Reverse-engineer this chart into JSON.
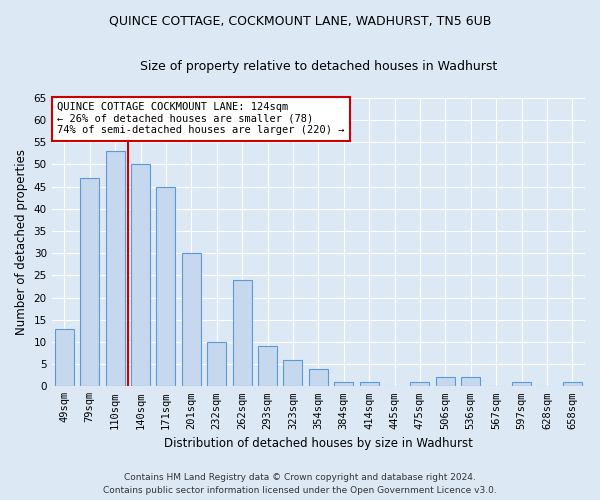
{
  "title": "QUINCE COTTAGE, COCKMOUNT LANE, WADHURST, TN5 6UB",
  "subtitle": "Size of property relative to detached houses in Wadhurst",
  "xlabel": "Distribution of detached houses by size in Wadhurst",
  "ylabel": "Number of detached properties",
  "bar_labels": [
    "49sqm",
    "79sqm",
    "110sqm",
    "140sqm",
    "171sqm",
    "201sqm",
    "232sqm",
    "262sqm",
    "293sqm",
    "323sqm",
    "354sqm",
    "384sqm",
    "414sqm",
    "445sqm",
    "475sqm",
    "506sqm",
    "536sqm",
    "567sqm",
    "597sqm",
    "628sqm",
    "658sqm"
  ],
  "bar_values": [
    13,
    47,
    53,
    50,
    45,
    30,
    10,
    24,
    9,
    6,
    4,
    1,
    1,
    0,
    1,
    2,
    2,
    0,
    1,
    0,
    1
  ],
  "bar_color": "#c5d8ee",
  "bar_edge_color": "#5b9bd5",
  "bar_edge_width": 0.8,
  "bar_width": 0.75,
  "red_line_x": 2.5,
  "red_line_color": "#cc0000",
  "ylim": [
    0,
    65
  ],
  "yticks": [
    0,
    5,
    10,
    15,
    20,
    25,
    30,
    35,
    40,
    45,
    50,
    55,
    60,
    65
  ],
  "annotation_text": "QUINCE COTTAGE COCKMOUNT LANE: 124sqm\n← 26% of detached houses are smaller (78)\n74% of semi-detached houses are larger (220) →",
  "annotation_box_color": "#ffffff",
  "annotation_border_color": "#cc0000",
  "background_color": "#dce9f5",
  "plot_bg_color": "#dce9f5",
  "grid_color": "#ffffff",
  "footnote": "Contains HM Land Registry data © Crown copyright and database right 2024.\nContains public sector information licensed under the Open Government Licence v3.0.",
  "title_fontsize": 9,
  "subtitle_fontsize": 9,
  "xlabel_fontsize": 8.5,
  "ylabel_fontsize": 8.5,
  "tick_fontsize": 7.5,
  "annotation_fontsize": 7.5,
  "footnote_fontsize": 6.5
}
